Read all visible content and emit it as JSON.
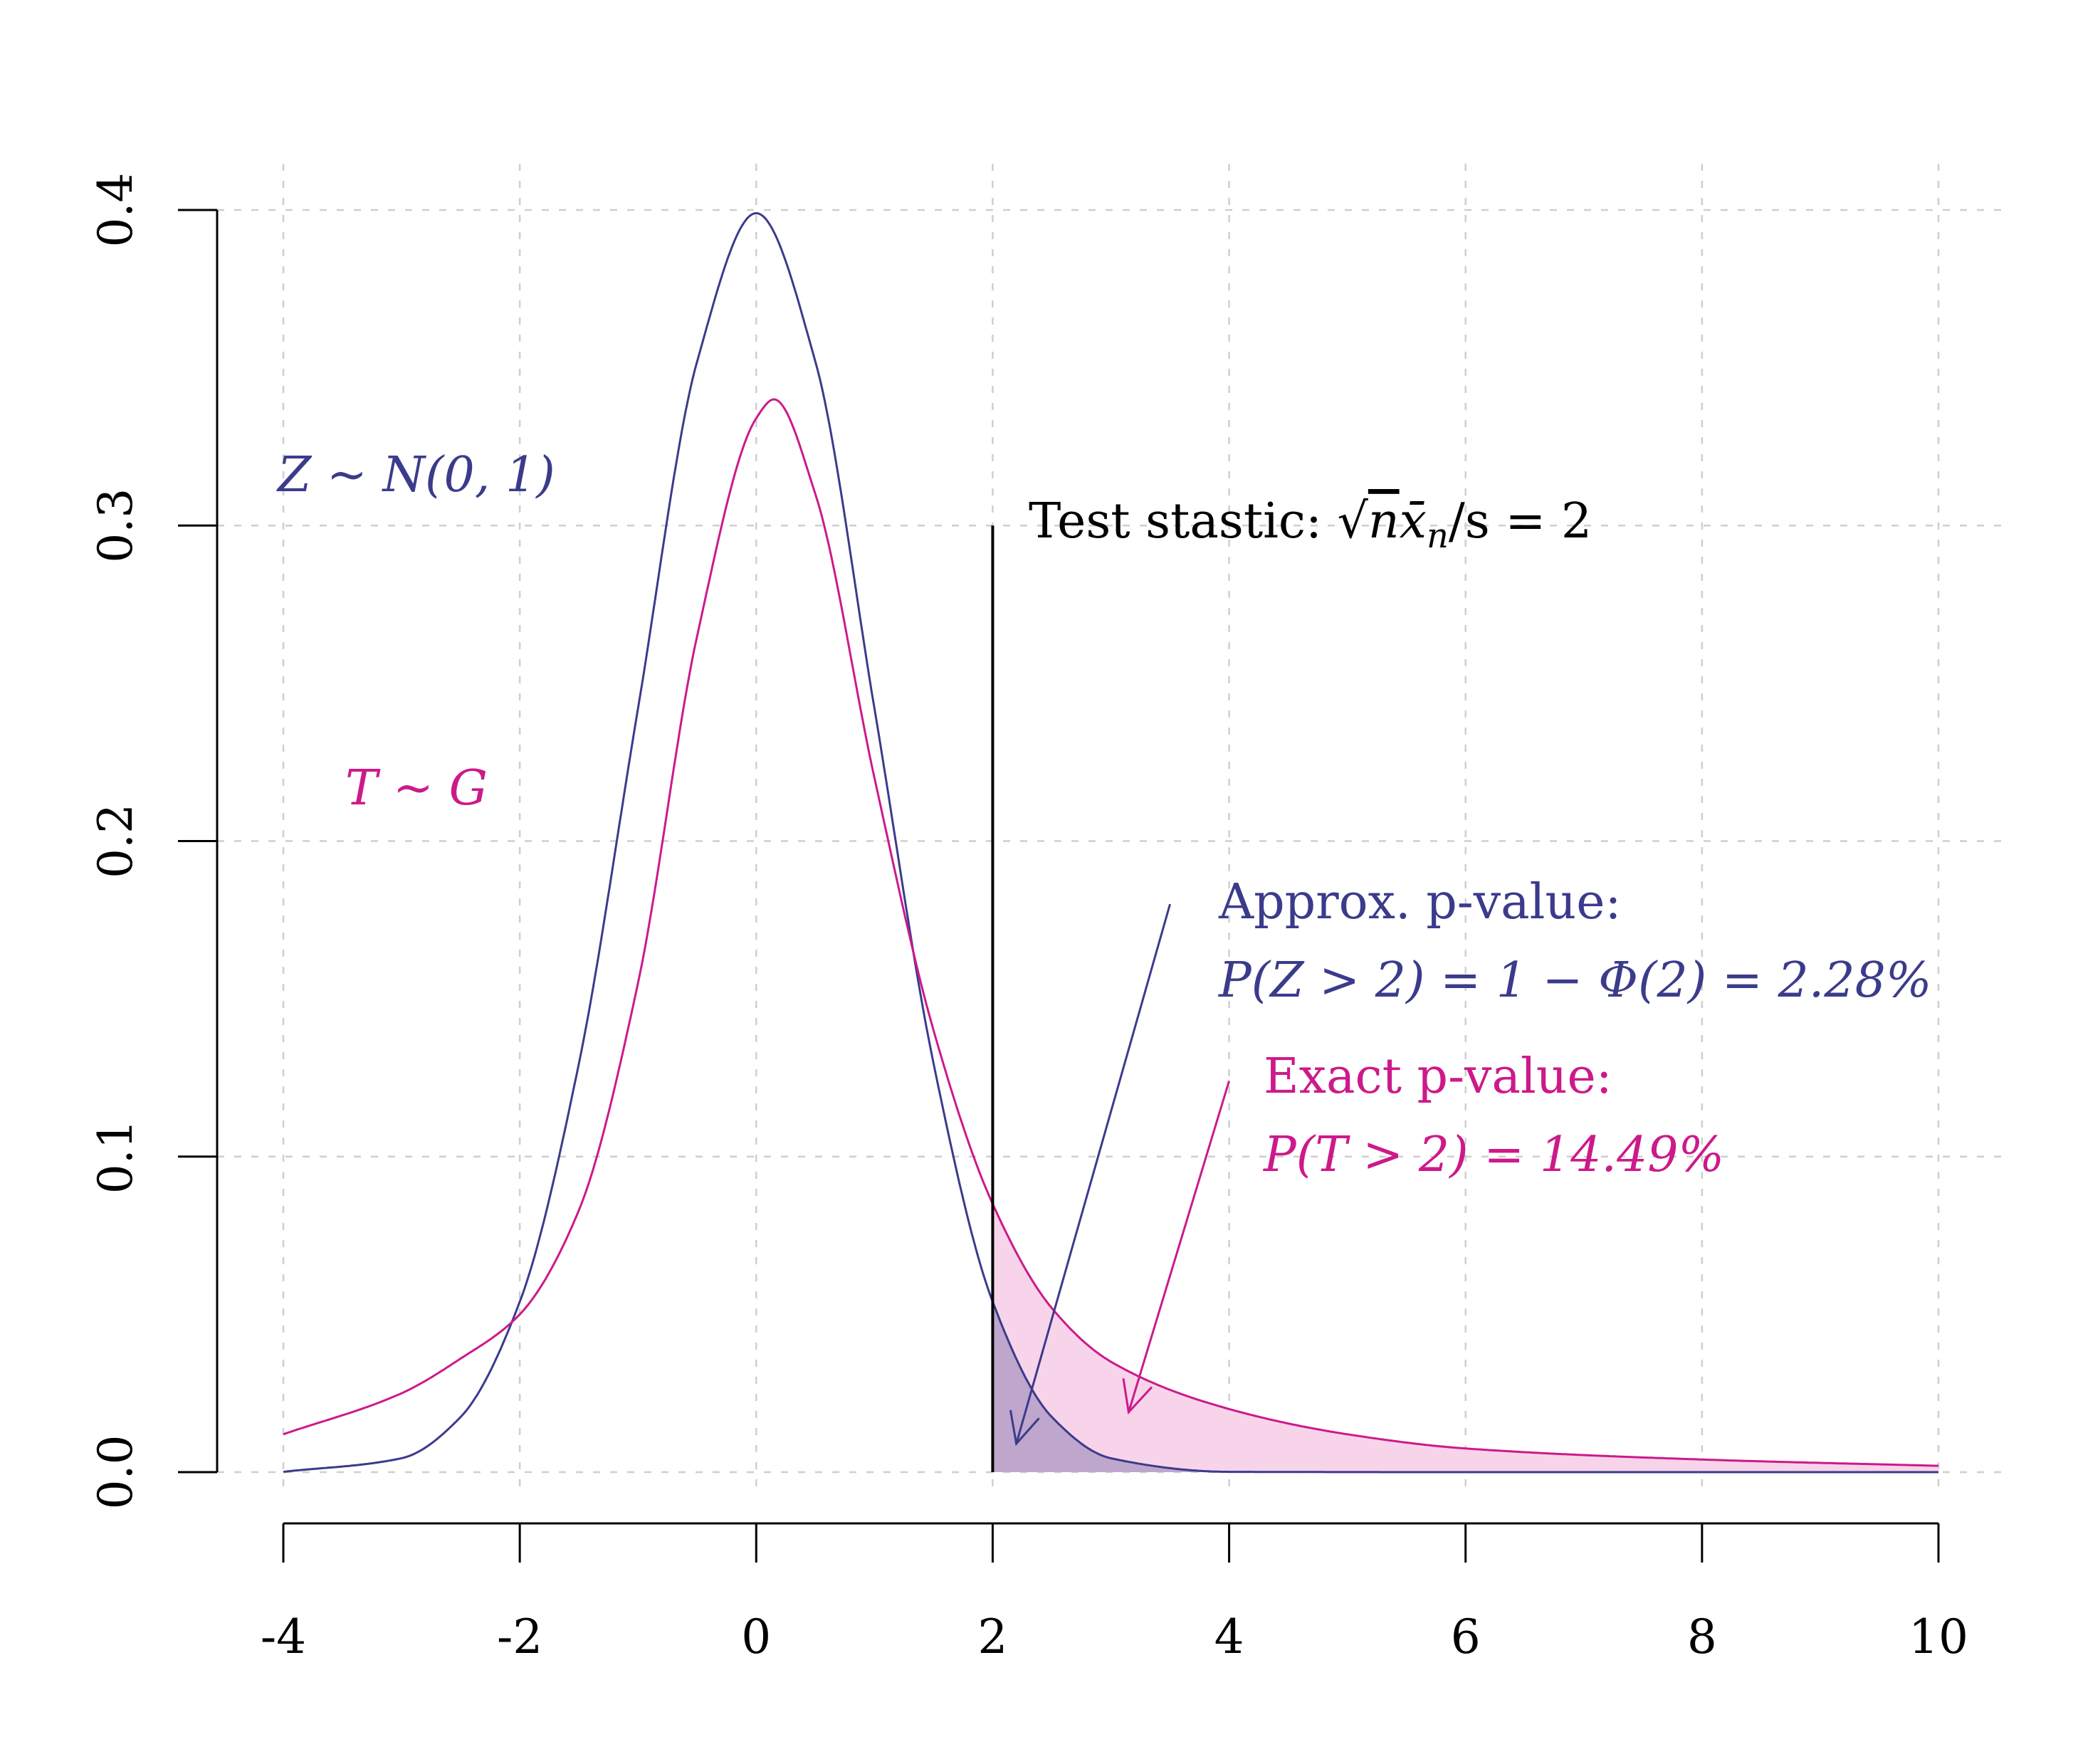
{
  "chart_data": {
    "type": "line",
    "title": "",
    "xlabel": "",
    "ylabel": "",
    "xlim": [
      -4,
      10
    ],
    "ylim": [
      0,
      0.4
    ],
    "x_ticks": [
      "-4",
      "-2",
      "0",
      "2",
      "4",
      "6",
      "8",
      "10"
    ],
    "y_ticks": [
      "0.0",
      "0.1",
      "0.2",
      "0.3",
      "0.4"
    ],
    "grid": true,
    "test_statistic": 2,
    "test_line_top": 0.3,
    "colors": {
      "normal": "#3b3b8c",
      "exact": "#cc1a8a",
      "normal_fill": "#bfa6cc",
      "exact_fill": "#f7d4ea",
      "grid": "#cfcfcf",
      "text": "#000000"
    },
    "series": [
      {
        "key": "normal",
        "x": [
          -4,
          -3,
          -2.5,
          -2,
          -1.5,
          -1,
          -0.5,
          0,
          0.5,
          1,
          1.5,
          2,
          2.5,
          3,
          4,
          6,
          10
        ],
        "y": [
          0.0001,
          0.0044,
          0.0175,
          0.054,
          0.1295,
          0.242,
          0.352,
          0.399,
          0.352,
          0.242,
          0.1295,
          0.054,
          0.0175,
          0.0044,
          0.0001,
          0.0,
          0.0
        ]
      },
      {
        "key": "exact",
        "x": [
          -4,
          -3,
          -2.5,
          -2,
          -1.5,
          -1,
          -0.5,
          0,
          0.15,
          0.5,
          1,
          1.5,
          2,
          2.5,
          3,
          4,
          5,
          6,
          8,
          10
        ],
        "y": [
          0.012,
          0.025,
          0.036,
          0.05,
          0.083,
          0.155,
          0.265,
          0.334,
          0.34,
          0.31,
          0.22,
          0.14,
          0.085,
          0.052,
          0.035,
          0.02,
          0.012,
          0.0075,
          0.004,
          0.002
        ]
      }
    ],
    "annotations": {
      "z_dist": "Z ~ N(0, 1)",
      "t_dist": "T ~ G",
      "test_stat_prefix": "Test stastic: ",
      "test_stat_n": "n",
      "test_stat_rest": "x̄",
      "test_stat_sub": "n",
      "test_stat_tail": "/s = 2",
      "approx_label": "Approx. p-value:",
      "approx_formula": "P(Z > 2) = 1 − Φ(2) = 2.28%",
      "exact_label": "Exact p-value:",
      "exact_formula": "P(T > 2) = 14.49%"
    },
    "arrows": [
      {
        "series": "normal",
        "from": [
          3.5,
          0.18
        ],
        "to": [
          2.2,
          0.009
        ]
      },
      {
        "series": "exact",
        "from": [
          4.0,
          0.124
        ],
        "to": [
          3.15,
          0.019
        ]
      }
    ]
  }
}
